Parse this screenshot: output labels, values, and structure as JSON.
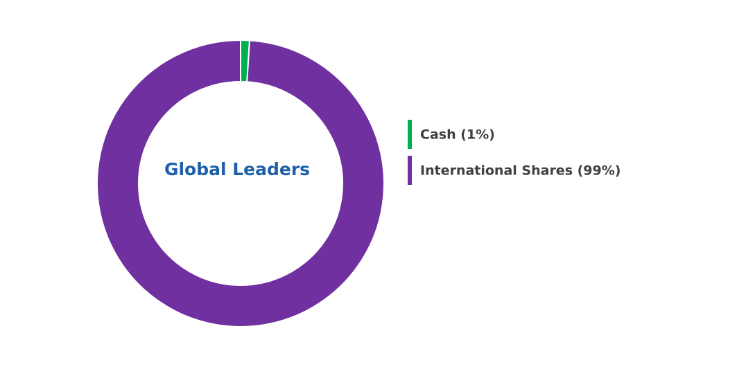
{
  "chart_data": {
    "type": "donut",
    "title": "Global Leaders",
    "categories": [
      "Cash (1%)",
      "International Shares (99%)"
    ],
    "values": [
      1,
      99
    ],
    "colors": [
      "#00b050",
      "#7030a0"
    ],
    "legend": "right"
  }
}
